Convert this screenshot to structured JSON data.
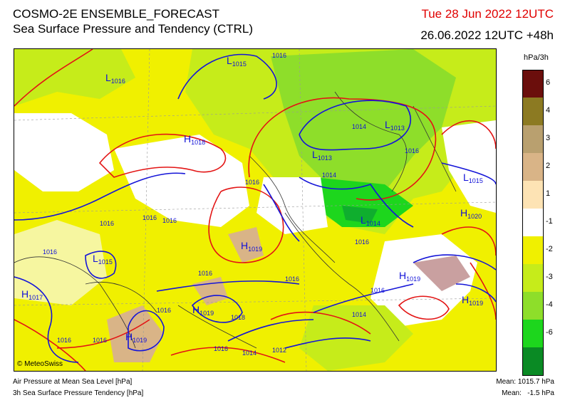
{
  "header": {
    "title": "COSMO-2E ENSEMBLE_FORECAST",
    "subtitle": "Sea Surface Pressure and Tendency (CTRL)",
    "valid_time": "Tue 28 Jun 2022 12UTC",
    "run_time": "26.06.2022 12UTC +48h"
  },
  "legend": {
    "unit": "hPa/3h",
    "bins": [
      {
        "label": "6",
        "color": "#6b0e0c"
      },
      {
        "label": "4",
        "color": "#8c7a22"
      },
      {
        "label": "3",
        "color": "#b9a06f"
      },
      {
        "label": "2",
        "color": "#d9b487"
      },
      {
        "label": "1",
        "color": "#fde3b4"
      },
      {
        "label": "-1",
        "color": "#ffffff"
      },
      {
        "label": "-2",
        "color": "#f0f000"
      },
      {
        "label": "-3",
        "color": "#c6ec1a"
      },
      {
        "label": "-4",
        "color": "#8ede2a"
      },
      {
        "label": "-6",
        "color": "#1dd61d"
      },
      {
        "label": "",
        "color": "#0a8a24"
      }
    ]
  },
  "map": {
    "pressure_centers": [
      {
        "type": "L",
        "value": "1016"
      },
      {
        "type": "L",
        "value": "1015"
      },
      {
        "type": "H",
        "value": "1018"
      },
      {
        "type": "L",
        "value": "1013"
      },
      {
        "type": "L",
        "value": "1013"
      },
      {
        "type": "L",
        "value": "1014"
      },
      {
        "type": "L",
        "value": "1015"
      },
      {
        "type": "H",
        "value": "1020"
      },
      {
        "type": "H",
        "value": "1019"
      },
      {
        "type": "L",
        "value": "1015"
      },
      {
        "type": "H",
        "value": "1017"
      },
      {
        "type": "H",
        "value": "1019"
      },
      {
        "type": "H",
        "value": "1019"
      },
      {
        "type": "H",
        "value": "1019"
      },
      {
        "type": "H",
        "value": "1019"
      }
    ],
    "isobar_labels": [
      "1016",
      "1014",
      "1014",
      "1016",
      "1016",
      "1016",
      "1016",
      "1016",
      "1016",
      "1016",
      "1016",
      "1016",
      "1016",
      "1016",
      "1014",
      "1012",
      "1018",
      "1016",
      "1016",
      "1016",
      "1014"
    ],
    "copyright": "© MeteoSwiss"
  },
  "footer": {
    "line1": "Air Pressure at Mean Sea Level [hPa]",
    "line2": "3h Sea Surface Pressure Tendency [hPa]",
    "mean1": "Mean: 1015.7 hPa",
    "mean2": "Mean:   -1.5 hPa"
  }
}
